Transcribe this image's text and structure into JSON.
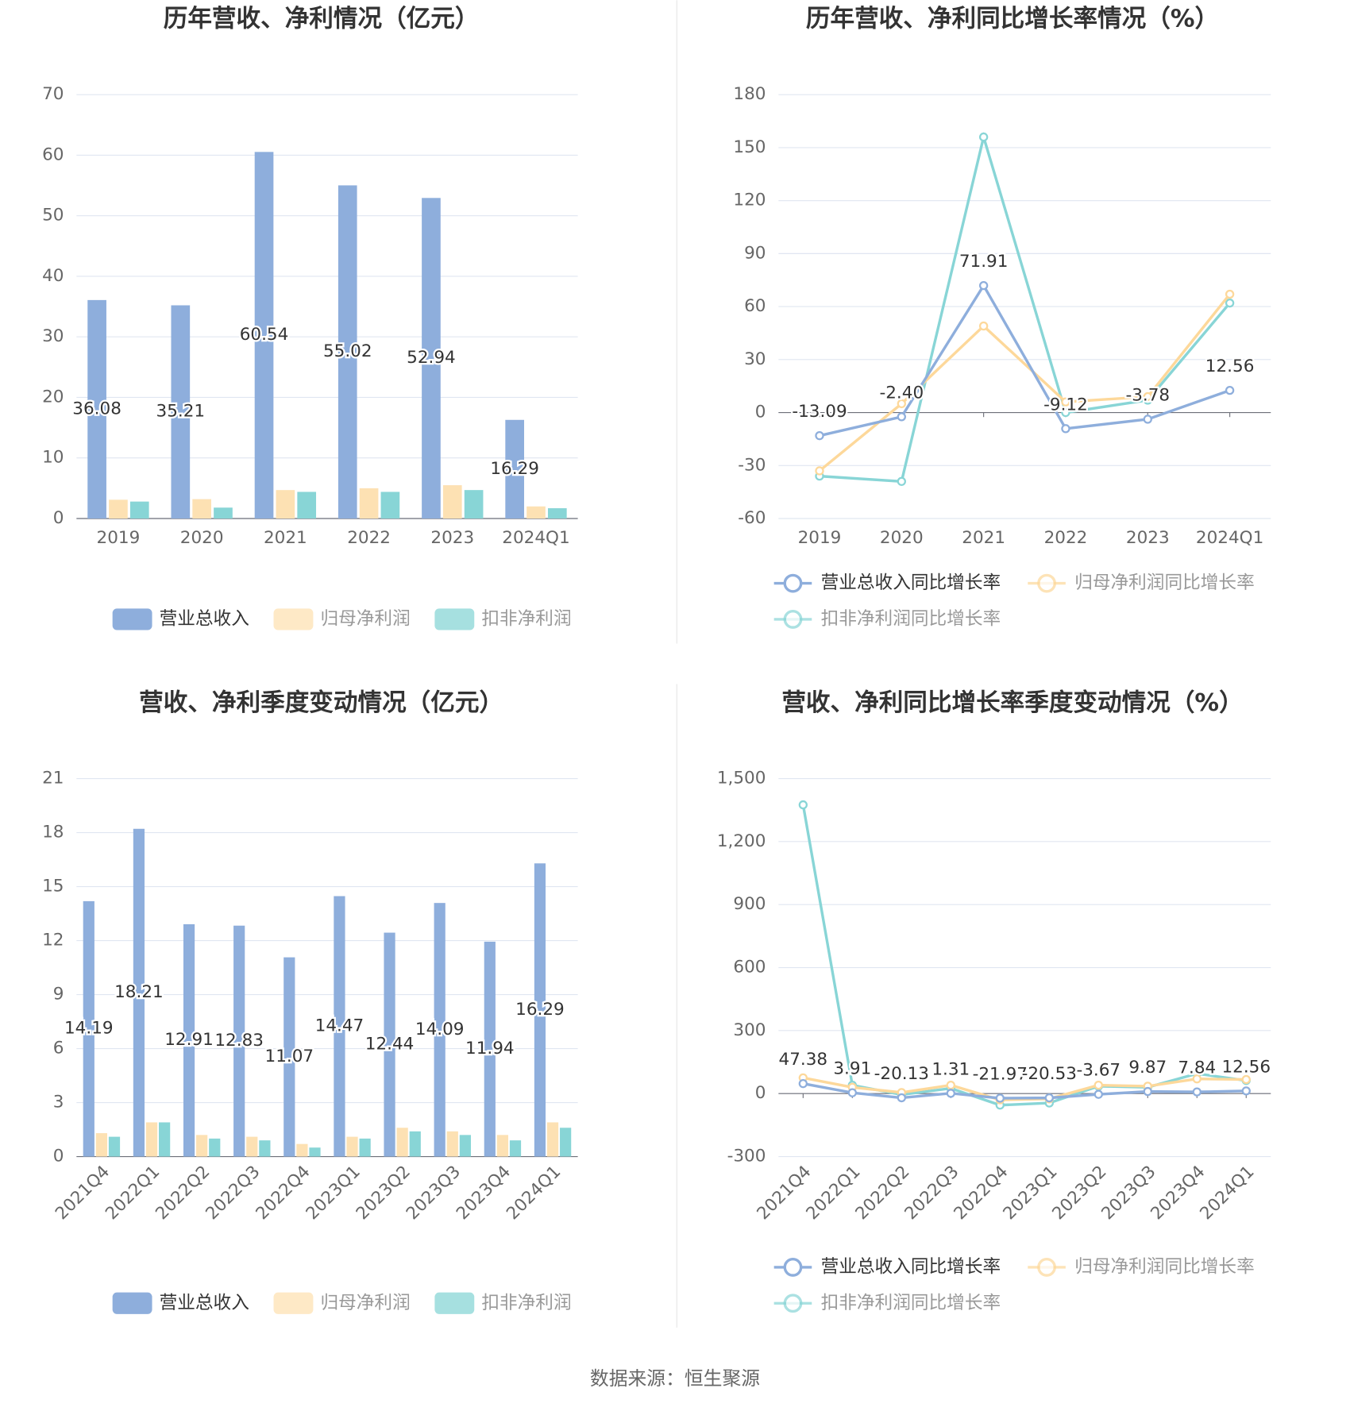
{
  "chart_data": [
    {
      "type": "bar",
      "title": "历年营收、净利情况（亿元）",
      "categories": [
        "2019",
        "2020",
        "2021",
        "2022",
        "2023",
        "2024Q1"
      ],
      "series": [
        {
          "name": "营业总收入",
          "color": "#8eaedc",
          "values": [
            36.08,
            35.21,
            60.54,
            55.02,
            52.94,
            16.29
          ],
          "value_labels": [
            "36.08",
            "35.21",
            "60.54",
            "55.02",
            "52.94",
            "16.29"
          ]
        },
        {
          "name": "归母净利润",
          "color": "#fde1b3",
          "values": [
            3.1,
            3.2,
            4.7,
            5.0,
            5.5,
            2.0
          ]
        },
        {
          "name": "扣非净利润",
          "color": "#88d5d6",
          "values": [
            2.8,
            1.8,
            4.4,
            4.4,
            4.7,
            1.7
          ]
        }
      ],
      "ylim": [
        0,
        70
      ],
      "yticks": [
        0,
        10,
        20,
        30,
        40,
        50,
        60,
        70
      ],
      "grid": true
    },
    {
      "type": "line",
      "title": "历年营收、净利同比增长率情况（%）",
      "categories": [
        "2019",
        "2020",
        "2021",
        "2022",
        "2023",
        "2024Q1"
      ],
      "series": [
        {
          "name": "营业总收入同比增长率",
          "color": "#8eaedc",
          "values": [
            -13.09,
            -2.4,
            71.91,
            -9.12,
            -3.78,
            12.56
          ],
          "value_labels": [
            "-13.09",
            "-2.40",
            "71.91",
            "-9.12",
            "-3.78",
            "12.56"
          ]
        },
        {
          "name": "归母净利润同比增长率",
          "color": "#fdd89a",
          "values": [
            -33,
            5,
            49,
            6,
            9,
            67
          ]
        },
        {
          "name": "扣非净利润同比增长率",
          "color": "#88d5d6",
          "values": [
            -36,
            -39,
            156,
            0,
            7,
            62
          ]
        }
      ],
      "ylim": [
        -60,
        180
      ],
      "yticks": [
        -60,
        -30,
        0,
        30,
        60,
        90,
        120,
        150,
        180
      ],
      "grid": true
    },
    {
      "type": "bar",
      "title": "营收、净利季度变动情况（亿元）",
      "categories": [
        "2021Q4",
        "2022Q1",
        "2022Q2",
        "2022Q3",
        "2022Q4",
        "2023Q1",
        "2023Q2",
        "2023Q3",
        "2023Q4",
        "2024Q1"
      ],
      "series": [
        {
          "name": "营业总收入",
          "color": "#8eaedc",
          "values": [
            14.19,
            18.21,
            12.91,
            12.83,
            11.07,
            14.47,
            12.44,
            14.09,
            11.94,
            16.29
          ],
          "value_labels": [
            "14.19",
            "18.21",
            "12.91",
            "12.83",
            "11.07",
            "14.47",
            "12.44",
            "14.09",
            "11.94",
            "16.29"
          ]
        },
        {
          "name": "归母净利润",
          "color": "#fde1b3",
          "values": [
            1.3,
            1.9,
            1.2,
            1.1,
            0.7,
            1.1,
            1.6,
            1.4,
            1.2,
            1.9
          ]
        },
        {
          "name": "扣非净利润",
          "color": "#88d5d6",
          "values": [
            1.1,
            1.9,
            1.0,
            0.9,
            0.5,
            1.0,
            1.4,
            1.2,
            0.9,
            1.6
          ]
        }
      ],
      "ylim": [
        0,
        21
      ],
      "yticks": [
        0,
        3,
        6,
        9,
        12,
        15,
        18,
        21
      ],
      "grid": true
    },
    {
      "type": "line",
      "title": "营收、净利同比增长率季度变动情况（%）",
      "categories": [
        "2021Q4",
        "2022Q1",
        "2022Q2",
        "2022Q3",
        "2022Q4",
        "2023Q1",
        "2023Q2",
        "2023Q3",
        "2023Q4",
        "2024Q1"
      ],
      "series": [
        {
          "name": "营业总收入同比增长率",
          "color": "#8eaedc",
          "values": [
            47.38,
            3.91,
            -20.13,
            1.31,
            -21.97,
            -20.53,
            -3.67,
            9.87,
            7.84,
            12.56
          ],
          "value_labels": [
            "47.38",
            "3.91",
            "-20.13",
            "1.31",
            "-21.97",
            "-20.53",
            "-3.67",
            "9.87",
            "7.84",
            "12.56"
          ]
        },
        {
          "name": "归母净利润同比增长率",
          "color": "#fdd89a",
          "values": [
            75,
            30,
            5,
            40,
            -30,
            -25,
            40,
            35,
            70,
            67
          ]
        },
        {
          "name": "扣非净利润同比增长率",
          "color": "#88d5d6",
          "values": [
            1375,
            40,
            -5,
            25,
            -55,
            -45,
            35,
            30,
            95,
            62
          ]
        }
      ],
      "ylim": [
        -300,
        1500
      ],
      "yticks": [
        -300,
        0,
        300,
        600,
        900,
        {
          "value": 1200,
          "label": "1,200"
        },
        {
          "value": 1500,
          "label": "1,500"
        }
      ],
      "grid": true
    }
  ],
  "source": "数据来源：恒生聚源"
}
